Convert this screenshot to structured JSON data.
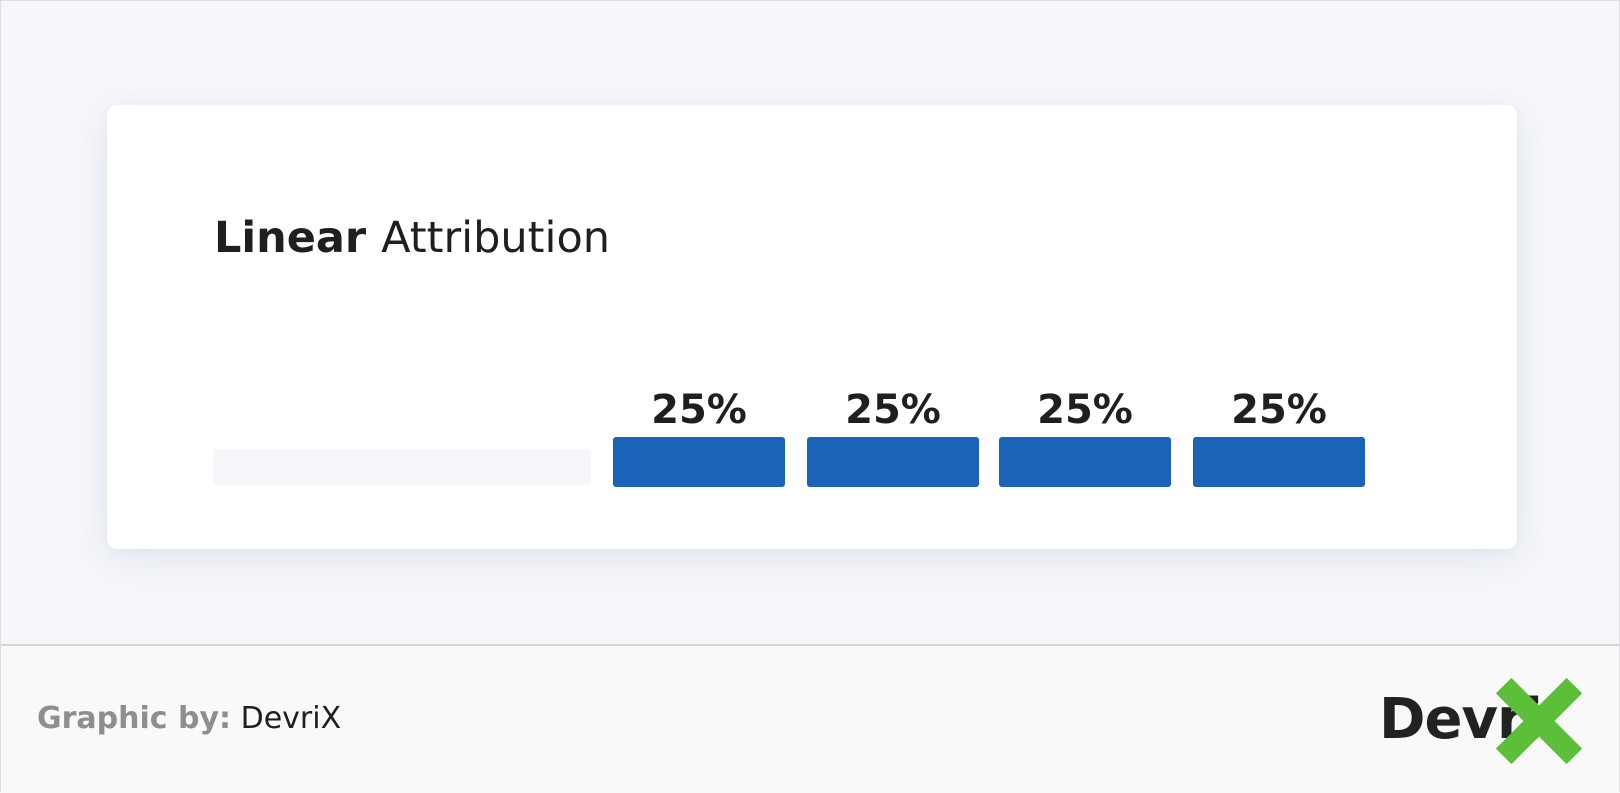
{
  "chart_data": {
    "type": "bar",
    "title_bold": "Linear",
    "title_rest": "Attribution",
    "categories": [
      "",
      "",
      "",
      ""
    ],
    "values": [
      25,
      25,
      25,
      25
    ],
    "value_labels": [
      "25%",
      "25%",
      "25%",
      "25%"
    ],
    "unit": "%",
    "legend": "none",
    "grid": false,
    "colors": {
      "bar": "#1a63b8",
      "placeholder_track": "#f6f7fa"
    }
  },
  "footer": {
    "credit_label": "Graphic by:",
    "credit_name": "DevriX"
  },
  "logo": {
    "text": "Devri",
    "icon": "green-x-mark-icon",
    "accent_color": "#5bbf3a"
  }
}
